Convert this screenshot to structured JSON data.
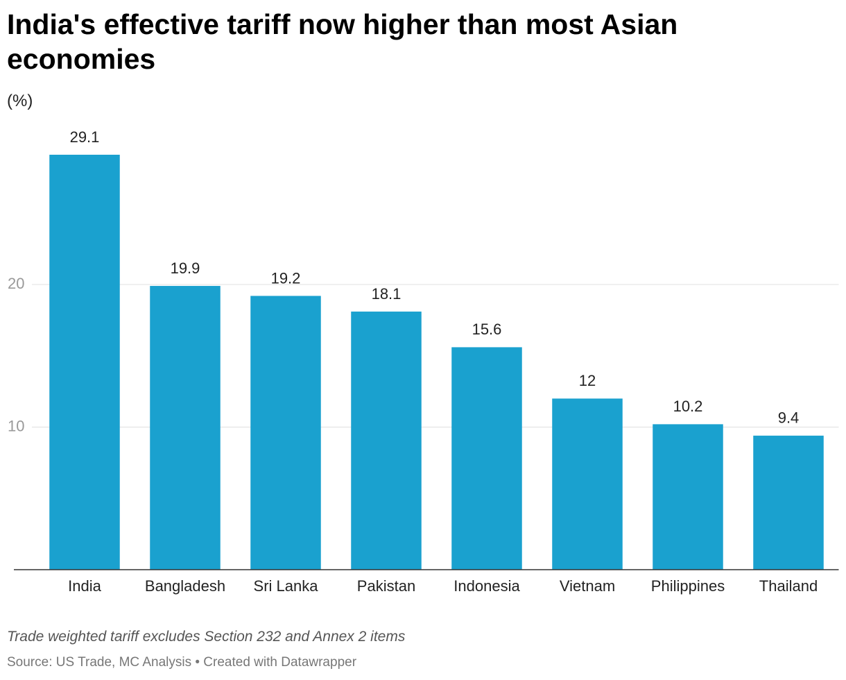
{
  "chart_data": {
    "type": "bar",
    "title": "India's effective tariff now higher than most Asian economies",
    "subtitle": "(%)",
    "categories": [
      "India",
      "Bangladesh",
      "Sri Lanka",
      "Pakistan",
      "Indonesia",
      "Vietnam",
      "Philippines",
      "Thailand"
    ],
    "values": [
      29.1,
      19.9,
      19.2,
      18.1,
      15.6,
      12,
      10.2,
      9.4
    ],
    "color": "#1aa1cf",
    "ylim": [
      0,
      30
    ],
    "yticks": [
      10,
      20
    ],
    "grid": true,
    "note": "Trade weighted tariff excludes Section 232 and Annex 2 items",
    "source": "Source: US Trade, MC Analysis • Created with Datawrapper"
  }
}
